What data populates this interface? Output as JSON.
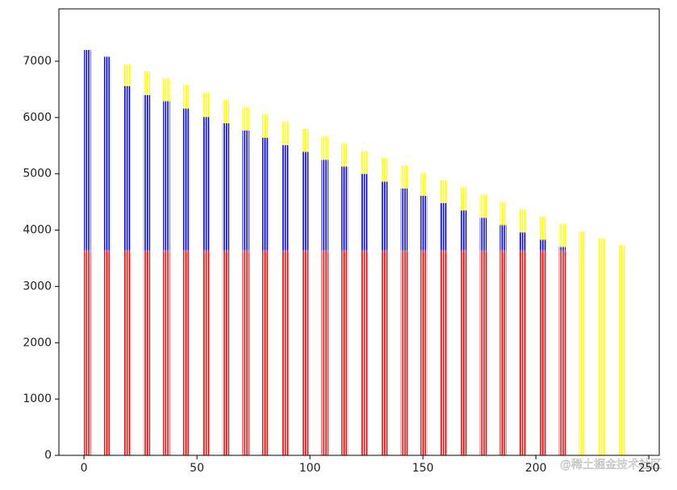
{
  "chart_data": {
    "type": "bar",
    "stacked": true,
    "bar_width": 3,
    "x": [
      1.5,
      10.3,
      19.0,
      27.8,
      36.5,
      45.3,
      54.1,
      62.8,
      71.6,
      80.3,
      89.1,
      97.9,
      106.6,
      115.4,
      124.1,
      132.9,
      141.7,
      150.4,
      159.2,
      167.9,
      176.7,
      185.5,
      194.2,
      203.0,
      211.7,
      220.5,
      229.3,
      238.0
    ],
    "series": [
      {
        "color": "#ff0000",
        "values": [
          3640,
          3640,
          3640,
          3640,
          3640,
          3640,
          3640,
          3640,
          3640,
          3640,
          3640,
          3640,
          3640,
          3640,
          3640,
          3640,
          3640,
          3640,
          3640,
          3640,
          3640,
          3640,
          3640,
          3640,
          3640,
          0,
          0,
          0
        ]
      },
      {
        "color": "#0000ff",
        "values": [
          3560,
          3440,
          2920,
          2760,
          2650,
          2520,
          2370,
          2260,
          2130,
          2000,
          1870,
          1750,
          1610,
          1490,
          1360,
          1220,
          1100,
          970,
          840,
          710,
          580,
          450,
          320,
          190,
          60,
          0,
          0,
          0
        ]
      },
      {
        "color": "#ffff00",
        "values": [
          0,
          0,
          390,
          420,
          410,
          420,
          440,
          420,
          420,
          420,
          420,
          410,
          420,
          410,
          410,
          420,
          410,
          410,
          410,
          410,
          410,
          410,
          410,
          410,
          410,
          3980,
          3850,
          3730
        ]
      }
    ],
    "xlim": [
      -11.1,
      254.6
    ],
    "xticks": [
      0,
      50,
      100,
      150,
      200,
      250
    ],
    "ylim": [
      0,
      7930
    ],
    "yticks": [
      0,
      1000,
      2000,
      3000,
      4000,
      5000,
      6000,
      7000
    ],
    "watermark": "@稀土掘金技术社区"
  }
}
